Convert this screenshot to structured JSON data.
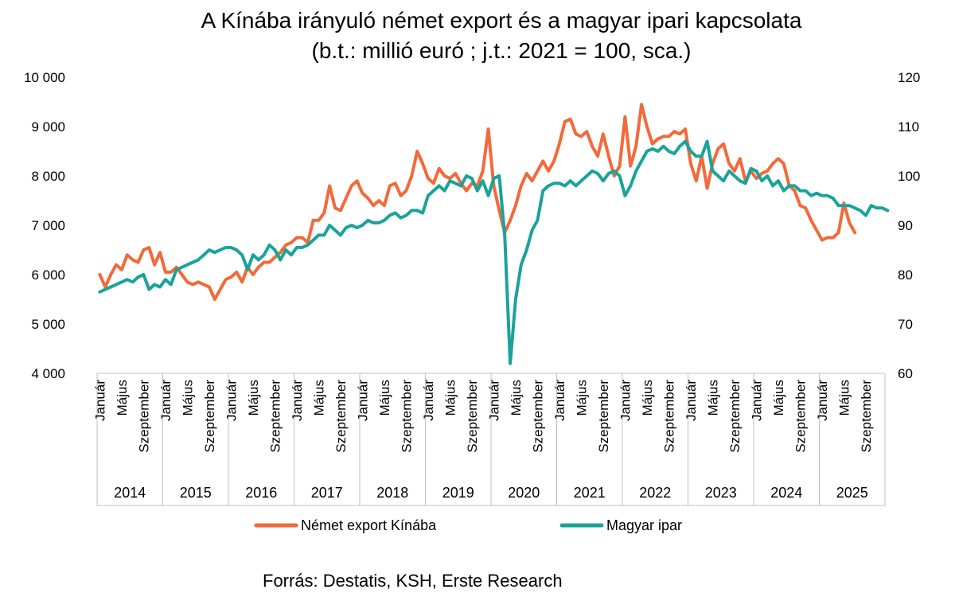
{
  "chart_data": {
    "type": "line",
    "title": "A Kínába irányuló német export és a magyar ipari kapcsolata",
    "subtitle": "(b.t.: millió euró ; j.t.: 2021 = 100, sca.)",
    "source": "Forrás: Destatis, KSH, Erste Research",
    "left_axis": {
      "ylim": [
        4000,
        10000
      ],
      "ticks": [
        "4 000",
        "5 000",
        "6 000",
        "7 000",
        "8 000",
        "9 000",
        "10 000"
      ],
      "tick_values": [
        4000,
        5000,
        6000,
        7000,
        8000,
        9000,
        10000
      ]
    },
    "right_axis": {
      "ylim": [
        60,
        120
      ],
      "ticks": [
        "60",
        "70",
        "80",
        "90",
        "100",
        "110",
        "120"
      ],
      "tick_values": [
        60,
        70,
        80,
        90,
        100,
        110,
        120
      ]
    },
    "x_axis": {
      "start": "2014-01",
      "month_labels": [
        "Január",
        "Május",
        "Szeptember"
      ],
      "years": [
        "2014",
        "2015",
        "2016",
        "2017",
        "2018",
        "2019",
        "2020",
        "2021",
        "2022",
        "2023",
        "2024",
        "2025"
      ]
    },
    "legend_position": "bottom",
    "series": [
      {
        "name": "Német export Kínába",
        "axis": "left",
        "color": "#F26A3A",
        "values": [
          6000,
          5750,
          6000,
          6200,
          6100,
          6400,
          6300,
          6250,
          6500,
          6550,
          6200,
          6450,
          6050,
          6050,
          6150,
          6000,
          5850,
          5800,
          5850,
          5800,
          5750,
          5500,
          5700,
          5900,
          5950,
          6050,
          5850,
          6150,
          6000,
          6150,
          6250,
          6250,
          6350,
          6450,
          6600,
          6650,
          6750,
          6750,
          6650,
          7100,
          7100,
          7250,
          7800,
          7350,
          7300,
          7550,
          7800,
          7900,
          7650,
          7550,
          7400,
          7500,
          7400,
          7800,
          7850,
          7600,
          7700,
          8000,
          8500,
          8250,
          7950,
          7850,
          8150,
          8000,
          7950,
          8050,
          7850,
          7700,
          7850,
          7800,
          8100,
          8950,
          7800,
          7300,
          6850,
          7100,
          7400,
          7800,
          8050,
          7900,
          8100,
          8300,
          8100,
          8300,
          8650,
          9100,
          9150,
          8850,
          8800,
          8900,
          8600,
          8400,
          8850,
          8400,
          8000,
          8200,
          9200,
          8200,
          8600,
          9450,
          9000,
          8650,
          8750,
          8800,
          8800,
          8900,
          8850,
          8950,
          8250,
          7900,
          8400,
          7750,
          8250,
          8550,
          8650,
          8250,
          8100,
          8350,
          7900,
          8100,
          7950,
          8050,
          8100,
          8250,
          8350,
          8250,
          7800,
          7700,
          7400,
          7350,
          7100,
          6900,
          6700,
          6750,
          6750,
          6850,
          7450,
          7050,
          6850
        ]
      },
      {
        "name": "Magyar ipar",
        "axis": "right",
        "color": "#1AA39A",
        "values": [
          76.5,
          77,
          77.5,
          78,
          78.5,
          79,
          78.5,
          79.5,
          80,
          77,
          78,
          77.5,
          79,
          78,
          81,
          81.5,
          82,
          82.5,
          83,
          84,
          85,
          84.5,
          85,
          85.5,
          85.5,
          85,
          84,
          81,
          84,
          83,
          84,
          86,
          85,
          83,
          85,
          84,
          85.5,
          85.5,
          86,
          87,
          88,
          88,
          90,
          89,
          88,
          89.5,
          90,
          89.5,
          90,
          91,
          90.5,
          90.5,
          91,
          92,
          92.5,
          91.5,
          92,
          93,
          93,
          92.5,
          96,
          97,
          98,
          97,
          99,
          98.5,
          98,
          100,
          99.5,
          97,
          99,
          96,
          99.5,
          100,
          88,
          62,
          75,
          82,
          85,
          89,
          91,
          97,
          98,
          98.5,
          98.5,
          98,
          99,
          98,
          99,
          100,
          101,
          100.5,
          99,
          100.5,
          101,
          100,
          96,
          98,
          101,
          103,
          105,
          105.5,
          105,
          106,
          105,
          104.5,
          106,
          107,
          105,
          104,
          104,
          107,
          101,
          100,
          99,
          101,
          100,
          99,
          98.5,
          101.5,
          101,
          99,
          100,
          98,
          99,
          97,
          98,
          98,
          97,
          97,
          96,
          96.5,
          96,
          96,
          95.5,
          94,
          94,
          94,
          93.5,
          93,
          92,
          94,
          93.5,
          93.5,
          93
        ]
      }
    ]
  }
}
